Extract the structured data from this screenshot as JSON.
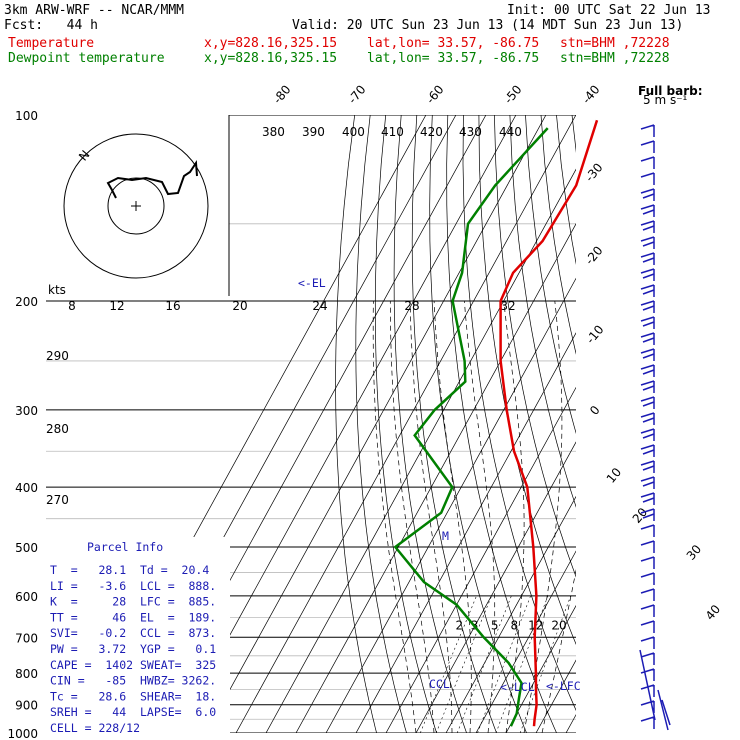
{
  "header": {
    "model": "3km ARW-WRF -- NCAR/MMM",
    "init": "Init: 00 UTC Sat 22 Jun 13",
    "fcst": "Fcst:   44 h",
    "valid": "Valid: 20 UTC Sun 23 Jun 13 (14 MDT Sun 23 Jun 13)",
    "temp_label": "Temperature",
    "dew_label": "Dewpoint temperature",
    "xy": "x,y=828.16,325.15",
    "latlon": "lat,lon= 33.57, -86.75",
    "stn": "stn=BHM ,72228"
  },
  "barb_note": {
    "line1": "Full barb:",
    "line2": "5 m s⁻¹"
  },
  "parcel": {
    "title": "Parcel Info",
    "rows": [
      "T  =   28.1  Td =  20.4",
      "LI =   -3.6  LCL =  888.",
      "K  =     28  LFC =  885.",
      "TT =     46  EL  =  189.",
      "SVI=   -0.2  CCL =  873.",
      "PW =   3.72  YGP =   0.1",
      "CAPE =  1402 SWEAT=  325",
      "CIN =   -85  HWBZ= 3262.",
      "Tc =   28.6  SHEAR=  18.",
      "SREH =   44  LAPSE=  6.0",
      "CELL = 228/12"
    ]
  },
  "hodograph": {
    "speed_unit": "kts",
    "ring_labels": [
      "8",
      "12",
      "16",
      "20",
      "24",
      "28",
      "32"
    ],
    "north": "N"
  },
  "markers": {
    "el": "<-EL",
    "ccl": "CCL",
    "lcl": "<-LCL",
    "lfc": "<-LFC",
    "m": "M"
  },
  "colors": {
    "temperature": "#e00000",
    "dewpoint": "#008000",
    "parcel_text": "#1c1cb4",
    "wind": "#1c1cb4"
  },
  "chart_data": {
    "type": "line",
    "chart_kind": "skew-T log-P sounding",
    "y_scale": "log",
    "pressure_levels": [
      100,
      200,
      300,
      400,
      500,
      600,
      700,
      800,
      900,
      1000
    ],
    "isotherm_labels": [
      -80,
      -70,
      -60,
      -50,
      -40,
      -30,
      -20,
      -10,
      0,
      10,
      20,
      30,
      40
    ],
    "theta_labels": [
      380,
      390,
      400,
      410,
      420,
      430,
      440
    ],
    "dry_adiabat_labels": [
      290,
      280,
      270
    ],
    "mixing_ratio_labels": [
      2,
      3,
      5,
      8,
      12,
      20
    ],
    "series": [
      {
        "name": "Temperature",
        "points": [
          [
            102,
            -62
          ],
          [
            130,
            -57
          ],
          [
            160,
            -58
          ],
          [
            180,
            -62
          ],
          [
            200,
            -61
          ],
          [
            250,
            -50
          ],
          [
            300,
            -39
          ],
          [
            350,
            -29
          ],
          [
            400,
            -18
          ],
          [
            500,
            -5
          ],
          [
            600,
            5
          ],
          [
            700,
            12
          ],
          [
            800,
            19
          ],
          [
            850,
            22
          ],
          [
            900,
            25
          ],
          [
            950,
            27
          ],
          [
            975,
            28.1
          ]
        ]
      },
      {
        "name": "Dewpoint temperature",
        "points": [
          [
            105,
            -77
          ],
          [
            130,
            -84
          ],
          [
            150,
            -86
          ],
          [
            180,
            -79
          ],
          [
            200,
            -77
          ],
          [
            250,
            -62
          ],
          [
            270,
            -58
          ],
          [
            300,
            -63
          ],
          [
            330,
            -65
          ],
          [
            400,
            -43
          ],
          [
            440,
            -42
          ],
          [
            500,
            -51
          ],
          [
            570,
            -35
          ],
          [
            620,
            -20
          ],
          [
            700,
            -5
          ],
          [
            770,
            8
          ],
          [
            830,
            16
          ],
          [
            880,
            18
          ],
          [
            930,
            20
          ],
          [
            975,
            20.4
          ]
        ]
      }
    ]
  }
}
